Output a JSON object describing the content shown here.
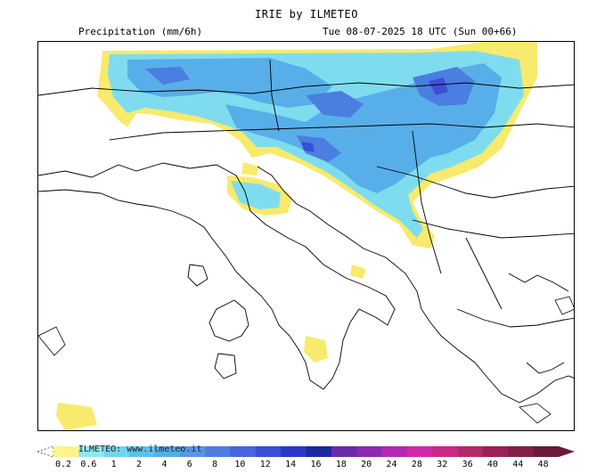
{
  "header": {
    "title": "IRIE by ILMETEO",
    "variable": "Precipitation (mm/6h)",
    "valid_time": "Tue 08-07-2025 18 UTC (Sun 00+66)"
  },
  "colorbar": {
    "watermark": "ILMETEO: www.ilmeteo.it",
    "ticks": [
      "0.2",
      "0.6",
      "1",
      "2",
      "4",
      "6",
      "8",
      "10",
      "12",
      "14",
      "16",
      "18",
      "20",
      "24",
      "28",
      "32",
      "36",
      "40",
      "44",
      "48"
    ],
    "colors": [
      "#fff38a",
      "#8ee8ee",
      "#6fd5ee",
      "#5cc2ec",
      "#56aee6",
      "#5696e3",
      "#4f7ee0",
      "#4866dc",
      "#3b4fd6",
      "#2a3ac6",
      "#1d2a9e",
      "#6b2aa8",
      "#8a2ab0",
      "#b02ab4",
      "#d02aa8",
      "#c82a86",
      "#b22a6a",
      "#9a2256",
      "#822046",
      "#6a1a3a"
    ]
  }
}
